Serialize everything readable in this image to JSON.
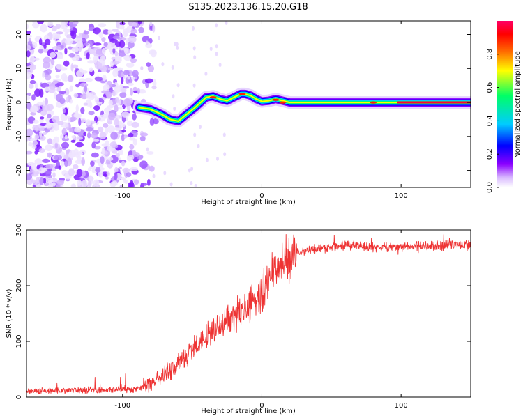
{
  "figure_title": "S135.2023.136.15.20.G18",
  "chart_data": [
    {
      "type": "heatmap",
      "title": "",
      "xlabel": "Height of straight line (km)",
      "ylabel": "Frequency (Hz)",
      "xlim": [
        -169,
        150
      ],
      "ylim": [
        -25,
        24
      ],
      "xticks": [
        -100,
        0,
        100
      ],
      "yticks": [
        -20,
        -10,
        0,
        10,
        20
      ],
      "colorbar": {
        "label": "Normalized spectral amplitude",
        "range": [
          0,
          1
        ],
        "ticks": [
          "0.0",
          "0.2",
          "0.4",
          "0.6",
          "0.8"
        ],
        "colormap": [
          "#ffffff",
          "#d8b8ff",
          "#8b00ff",
          "#0000ff",
          "#00ccff",
          "#00ff66",
          "#ffff00",
          "#ff6600",
          "#ff0000",
          "#ff0066"
        ]
      },
      "ridge": {
        "x": [
          -88,
          -80,
          -72,
          -66,
          -60,
          -54,
          -48,
          -44,
          -40,
          -35,
          -30,
          -25,
          -20,
          -15,
          -12,
          -8,
          -4,
          0,
          5,
          10,
          15,
          20,
          40,
          60,
          80,
          97,
          100,
          120,
          150
        ],
        "y": [
          -1.5,
          -2,
          -3.5,
          -5,
          -5.5,
          -3.5,
          -1.5,
          0,
          1.5,
          1.8,
          1,
          0.5,
          1.5,
          2.5,
          2.5,
          2,
          1,
          0.3,
          0.5,
          1,
          0.5,
          0,
          0,
          0,
          0,
          0,
          0,
          0,
          0
        ]
      },
      "noise_region_x": [
        -169,
        -90
      ]
    },
    {
      "type": "line",
      "title": "",
      "xlabel": "Height of straight line (km)",
      "ylabel": "SNR (10 * v/v)",
      "xlim": [
        -169,
        150
      ],
      "ylim": [
        0,
        300
      ],
      "xticks": [
        -100,
        0,
        100
      ],
      "yticks": [
        0,
        100,
        200,
        300
      ],
      "series": [
        {
          "color": "#ee3333",
          "x": [
            -169,
            -150,
            -130,
            -110,
            -90,
            -80,
            -70,
            -60,
            -50,
            -40,
            -30,
            -20,
            -10,
            0,
            5,
            10,
            15,
            20,
            25,
            30,
            40,
            50,
            60,
            70,
            80,
            90,
            100,
            110,
            120,
            130,
            140,
            150
          ],
          "y": [
            10,
            12,
            12,
            13,
            15,
            22,
            40,
            60,
            85,
            110,
            130,
            145,
            160,
            185,
            210,
            235,
            242,
            248,
            257,
            262,
            266,
            268,
            272,
            270,
            268,
            270,
            268,
            272,
            270,
            272,
            274,
            272
          ]
        }
      ]
    }
  ]
}
